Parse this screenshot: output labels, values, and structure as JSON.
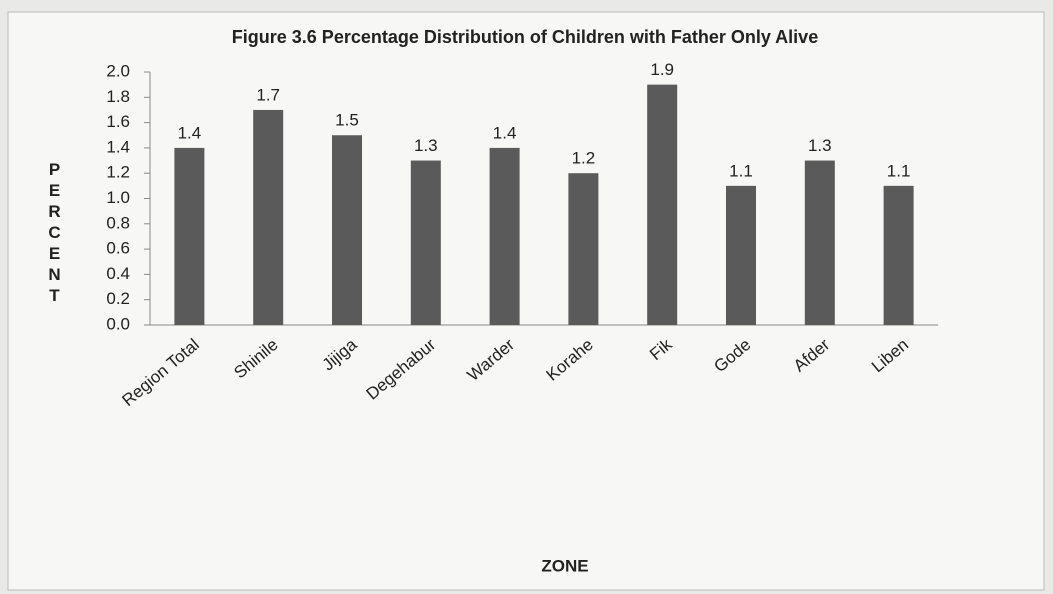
{
  "chart_data": {
    "type": "bar",
    "title": "Figure 3.6 Percentage Distribution of Children with Father Only Alive",
    "x_label": "ZONE",
    "y_label": "PERCENT",
    "categories": [
      "Region Total",
      "Shinile",
      "Jijiga",
      "Degehabur",
      "Warder",
      "Korahe",
      "Fik",
      "Gode",
      "Afder",
      "Liben"
    ],
    "values": [
      1.4,
      1.7,
      1.5,
      1.3,
      1.4,
      1.2,
      1.9,
      1.1,
      1.3,
      1.1
    ],
    "color": "#5a5a5a",
    "ylim": [
      0,
      2.0
    ],
    "yticks": [
      {
        "value": 0,
        "label": "0.0"
      },
      0.2,
      0.4,
      0.6,
      0.8,
      {
        "value": 1,
        "label": "1.0"
      },
      1.2,
      1.4,
      1.6,
      1.8,
      {
        "value": 2,
        "label": "2.0"
      }
    ],
    "grid": false
  }
}
